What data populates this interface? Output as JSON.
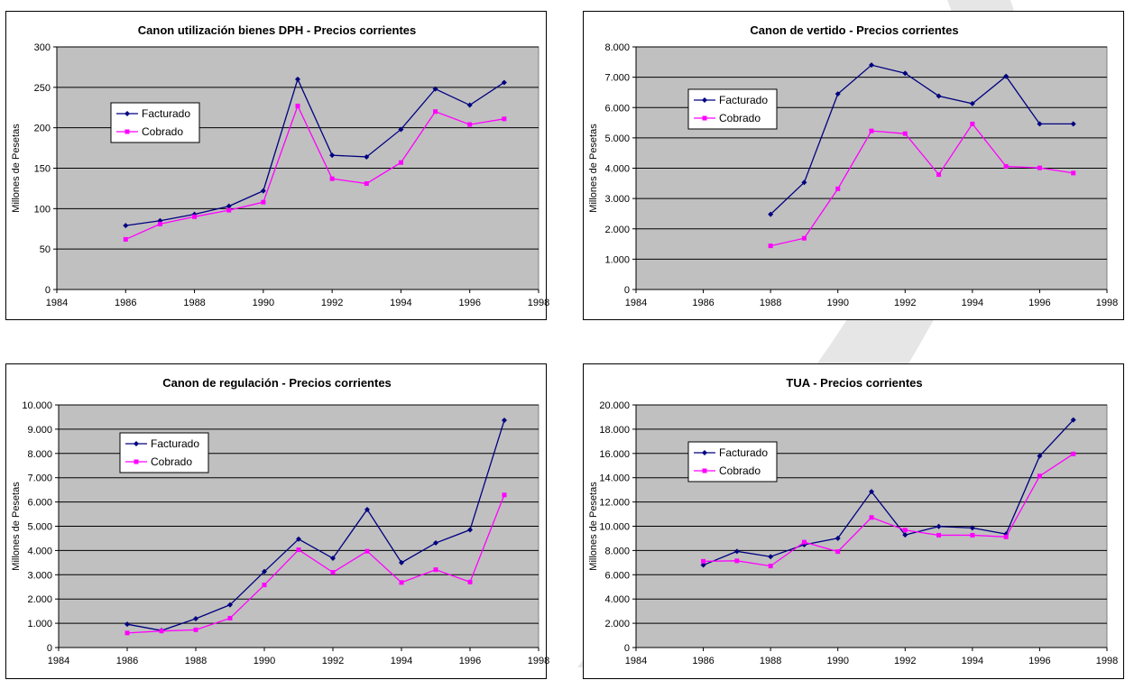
{
  "colors": {
    "plot_bg": "#C0C0C0",
    "facturado": "#000080",
    "cobrado": "#FF00FF",
    "grid": "#000000",
    "watermark": "#E6E6E6"
  },
  "chart_data": [
    {
      "type": "line",
      "title": "Canon utilización bienes DPH - Precios corrientes",
      "xlabel": "",
      "ylabel": "Millones de Pesetas",
      "xlim": [
        1984,
        1998
      ],
      "ylim": [
        0,
        300
      ],
      "x_ticks": [
        "1984",
        "1986",
        "1988",
        "1990",
        "1992",
        "1994",
        "1996",
        "1998"
      ],
      "y_ticks": [
        "0",
        "50",
        "100",
        "150",
        "200",
        "250",
        "300"
      ],
      "grid": true,
      "legend": "upper-left",
      "series": [
        {
          "name": "Facturado",
          "x": [
            1986,
            1987,
            1988,
            1989,
            1990,
            1991,
            1992,
            1993,
            1994,
            1995,
            1996,
            1997
          ],
          "values": [
            79,
            85,
            93,
            103,
            122,
            260,
            166,
            164,
            198,
            248,
            228,
            256
          ]
        },
        {
          "name": "Cobrado",
          "x": [
            1986,
            1987,
            1988,
            1989,
            1990,
            1991,
            1992,
            1993,
            1994,
            1995,
            1996,
            1997
          ],
          "values": [
            62,
            81,
            90,
            98,
            108,
            227,
            137,
            131,
            157,
            220,
            204,
            211
          ]
        }
      ]
    },
    {
      "type": "line",
      "title": "Canon de vertido - Precios corrientes",
      "xlabel": "",
      "ylabel": "Millones de Pesetas",
      "xlim": [
        1984,
        1998
      ],
      "ylim": [
        0,
        8000
      ],
      "x_ticks": [
        "1984",
        "1986",
        "1988",
        "1990",
        "1992",
        "1994",
        "1996",
        "1998"
      ],
      "y_ticks": [
        "0",
        "1.000",
        "2.000",
        "3.000",
        "4.000",
        "5.000",
        "6.000",
        "7.000",
        "8.000"
      ],
      "grid": true,
      "legend": "upper-left",
      "series": [
        {
          "name": "Facturado",
          "x": [
            1988,
            1989,
            1990,
            1991,
            1992,
            1993,
            1994,
            1995,
            1996,
            1997
          ],
          "values": [
            2480,
            3530,
            6450,
            7400,
            7130,
            6380,
            6130,
            7030,
            5460,
            5460
          ]
        },
        {
          "name": "Cobrado",
          "x": [
            1988,
            1989,
            1990,
            1991,
            1992,
            1993,
            1994,
            1995,
            1996,
            1997
          ],
          "values": [
            1440,
            1690,
            3320,
            5230,
            5140,
            3790,
            5460,
            4060,
            4010,
            3840
          ]
        }
      ]
    },
    {
      "type": "line",
      "title": "Canon de regulación - Precios corrientes",
      "xlabel": "",
      "ylabel": "Millones de Pesetas",
      "xlim": [
        1984,
        1998
      ],
      "ylim": [
        0,
        10000
      ],
      "x_ticks": [
        "1984",
        "1986",
        "1988",
        "1990",
        "1992",
        "1994",
        "1996",
        "1998"
      ],
      "y_ticks": [
        "0",
        "1.000",
        "2.000",
        "3.000",
        "4.000",
        "5.000",
        "6.000",
        "7.000",
        "8.000",
        "9.000",
        "10.000"
      ],
      "grid": true,
      "legend": "upper-left",
      "series": [
        {
          "name": "Facturado",
          "x": [
            1986,
            1987,
            1988,
            1989,
            1990,
            1991,
            1992,
            1993,
            1994,
            1995,
            1996,
            1997
          ],
          "values": [
            960,
            700,
            1190,
            1760,
            3130,
            4470,
            3680,
            5690,
            3500,
            4310,
            4850,
            9370
          ]
        },
        {
          "name": "Cobrado",
          "x": [
            1986,
            1987,
            1988,
            1989,
            1990,
            1991,
            1992,
            1993,
            1994,
            1995,
            1996,
            1997
          ],
          "values": [
            600,
            680,
            730,
            1210,
            2580,
            4030,
            3100,
            3970,
            2680,
            3210,
            2700,
            6290
          ]
        }
      ]
    },
    {
      "type": "line",
      "title": "TUA - Precios corrientes",
      "xlabel": "",
      "ylabel": "Millones de Pesetas",
      "xlim": [
        1984,
        1998
      ],
      "ylim": [
        0,
        20000
      ],
      "x_ticks": [
        "1984",
        "1986",
        "1988",
        "1990",
        "1992",
        "1994",
        "1996",
        "1998"
      ],
      "y_ticks": [
        "0",
        "2.000",
        "4.000",
        "6.000",
        "8.000",
        "10.000",
        "12.000",
        "14.000",
        "16.000",
        "18.000",
        "20.000"
      ],
      "grid": true,
      "legend": "upper-left",
      "series": [
        {
          "name": "Facturado",
          "x": [
            1986,
            1987,
            1988,
            1989,
            1990,
            1991,
            1992,
            1993,
            1994,
            1995,
            1996,
            1997
          ],
          "values": [
            6800,
            7930,
            7490,
            8480,
            9010,
            12850,
            9280,
            9980,
            9860,
            9360,
            15790,
            18760
          ]
        },
        {
          "name": "Cobrado",
          "x": [
            1986,
            1987,
            1988,
            1989,
            1990,
            1991,
            1992,
            1993,
            1994,
            1995,
            1996,
            1997
          ],
          "values": [
            7110,
            7150,
            6720,
            8690,
            7910,
            10720,
            9680,
            9260,
            9260,
            9120,
            14140,
            15960
          ]
        }
      ]
    }
  ]
}
